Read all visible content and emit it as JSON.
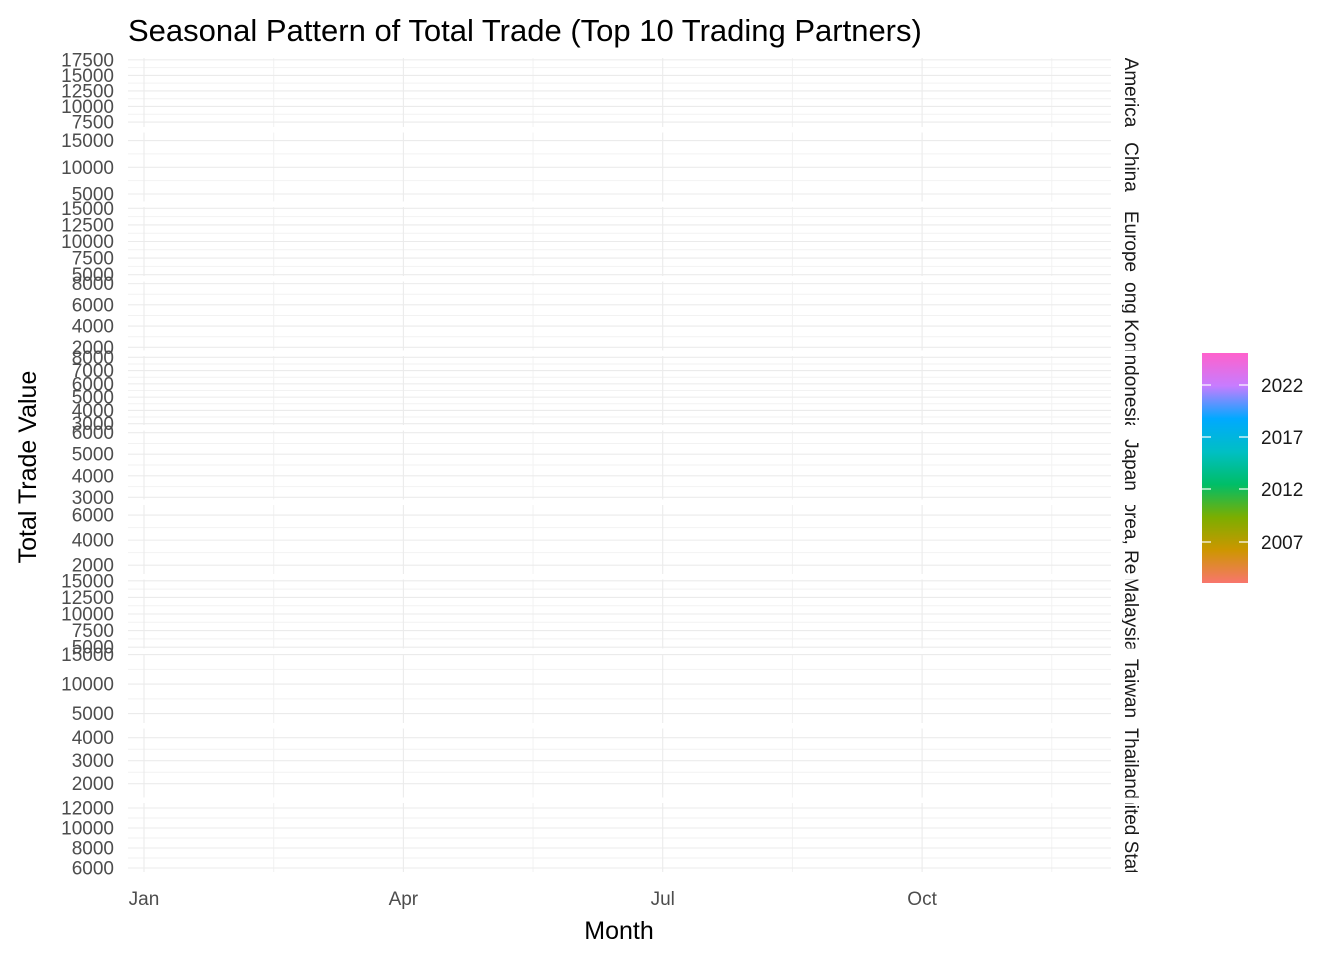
{
  "chart_data": {
    "type": "line",
    "title": "Seasonal Pattern of Total Trade (Top 10 Trading Partners)",
    "xlabel": "Month",
    "ylabel": "Total Trade Value",
    "x_ticks": [
      "Jan",
      "Apr",
      "Jul",
      "Oct"
    ],
    "x_range": [
      1,
      12
    ],
    "grid": true,
    "legend": {
      "type": "colorbar",
      "placement": "right",
      "labels": [
        "2022",
        "2017",
        "2012",
        "2007"
      ],
      "color_stops": [
        "#f8766d",
        "#cd9600",
        "#7cae00",
        "#00be67",
        "#00bfc4",
        "#00a9ff",
        "#c77cff",
        "#ff61cc"
      ]
    },
    "facets": [
      {
        "strip": "America",
        "ylim": [
          6700,
          17800
        ],
        "y_ticks": [
          7500,
          10000,
          12500,
          15000,
          17500
        ]
      },
      {
        "strip": "China",
        "ylim": [
          3600,
          16500
        ],
        "y_ticks": [
          5000,
          10000,
          15000
        ]
      },
      {
        "strip": "Europe",
        "ylim": [
          4800,
          15200
        ],
        "y_ticks": [
          5000,
          7500,
          10000,
          12500,
          15000
        ]
      },
      {
        "strip": "Hong Kong",
        "ylim": [
          1700,
          8200
        ],
        "y_ticks": [
          2000,
          4000,
          6000,
          8000
        ]
      },
      {
        "strip": "Indonesia",
        "ylim": [
          2900,
          8100
        ],
        "y_ticks": [
          3000,
          4000,
          5000,
          6000,
          7000,
          8000
        ]
      },
      {
        "strip": "Japan",
        "ylim": [
          2900,
          6100
        ],
        "y_ticks": [
          3000,
          4000,
          5000,
          6000
        ]
      },
      {
        "strip": "Korea, Rep.",
        "ylim": [
          1300,
          6800
        ],
        "y_ticks": [
          2000,
          4000,
          6000
        ]
      },
      {
        "strip": "Malaysia",
        "ylim": [
          4800,
          15200
        ],
        "y_ticks": [
          5000,
          7500,
          10000,
          12500,
          15000
        ]
      },
      {
        "strip": "Taiwan",
        "ylim": [
          3400,
          15100
        ],
        "y_ticks": [
          5000,
          10000,
          15000
        ]
      },
      {
        "strip": "Thailand",
        "ylim": [
          1400,
          4400
        ],
        "y_ticks": [
          2000,
          3000,
          4000
        ]
      },
      {
        "strip": "United States",
        "ylim": [
          5600,
          12500
        ],
        "y_ticks": [
          6000,
          8000,
          10000,
          12000
        ]
      }
    ],
    "series": []
  }
}
